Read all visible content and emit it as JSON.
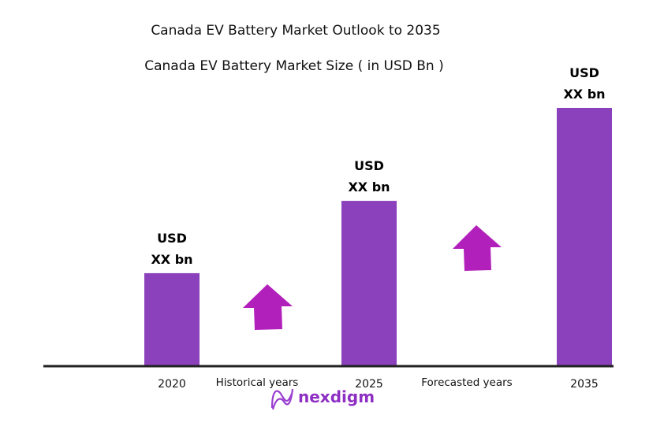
{
  "chart_data": {
    "type": "bar",
    "title": "Canada EV Battery Market Outlook to 2035",
    "subtitle": "Canada EV Battery Market Size ( in USD Bn )",
    "categories": [
      "2020",
      "2025",
      "2035"
    ],
    "values": [
      36,
      64,
      100
    ],
    "value_note_relative": true,
    "data_labels": [
      {
        "line1": "USD",
        "line2": "XX bn"
      },
      {
        "line1": "USD",
        "line2": "XX bn"
      },
      {
        "line1": "USD",
        "line2": "XX bn"
      }
    ],
    "annotations": [
      "Historical years",
      "Forecasted years"
    ],
    "xlabel": "",
    "ylabel": "",
    "grid": false,
    "colors": {
      "bar": "#8b41bb",
      "arrow": "#b220bb",
      "axis": "#222222"
    }
  },
  "brand": {
    "name": "nexdigm",
    "color": "#8e2fc4"
  }
}
